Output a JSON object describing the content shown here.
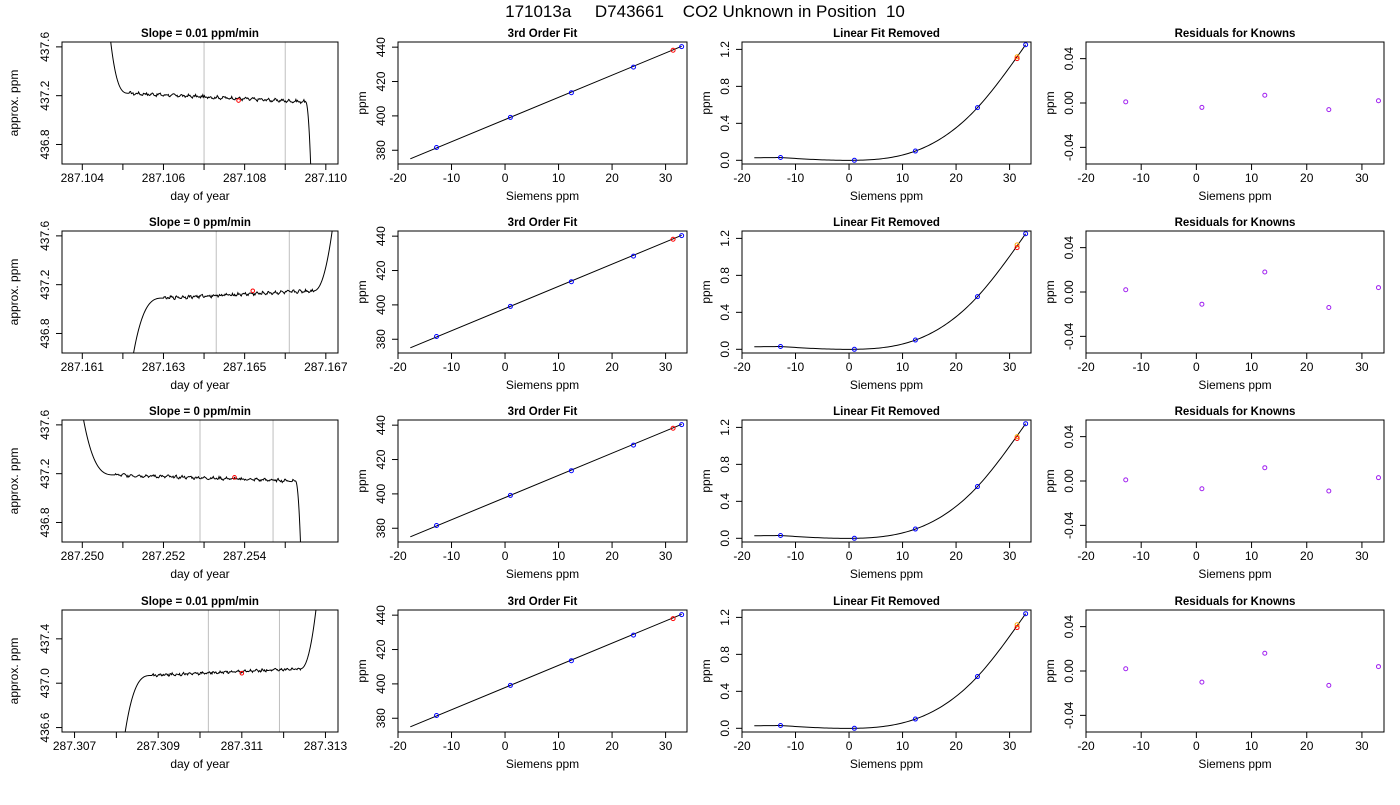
{
  "figure": {
    "title": "171013a     D743661    CO2 Unknown in Position  10"
  },
  "colors": {
    "trace": "#000000",
    "known_marker": "#0000ff",
    "unknown_marker": "#ff0000",
    "unknown_alt_marker": "#ffa500",
    "residual_marker": "#a020f0",
    "window_line": "#bebebe"
  },
  "chart_data": [
    {
      "type": "line",
      "row": 1,
      "panel": "timeseries",
      "title": "Slope =  0.01  ppm/min",
      "xlabel": "day of year",
      "ylabel": "approx. ppm",
      "xlim": [
        287.1035,
        287.1103
      ],
      "ylim": [
        436.64,
        437.64
      ],
      "xticks": [
        287.104,
        287.106,
        287.108,
        287.11
      ],
      "xtick_labels": [
        "287.104",
        "287.106",
        "287.108",
        "287.110"
      ],
      "yticks": [
        436.8,
        437.2,
        437.6
      ],
      "ytick_labels": [
        "436.8",
        "437.2",
        "437.6"
      ],
      "minor_xticks": [
        287.105,
        287.107,
        287.109
      ],
      "window": [
        287.107,
        287.109
      ],
      "start": [
        287.10465,
        437.8
      ],
      "rise_or_fall_end": [
        287.10515,
        437.22
      ],
      "plateau_end": [
        287.1095,
        437.15
      ],
      "end": [
        287.10965,
        436.4
      ],
      "mean_point": [
        287.10785,
        437.16
      ],
      "noise": 0.012
    },
    {
      "type": "scatter",
      "row": 1,
      "panel": "fit",
      "title": "3rd Order Fit",
      "xlabel": "Siemens ppm",
      "ylabel": "ppm",
      "xlim": [
        -20,
        34
      ],
      "ylim": [
        372,
        443
      ],
      "xticks": [
        -20,
        -10,
        0,
        10,
        20,
        30
      ],
      "xtick_labels": [
        "-20",
        "-10",
        "0",
        "10",
        "20",
        "30"
      ],
      "yticks": [
        380,
        400,
        420,
        440
      ],
      "ytick_labels": [
        "380",
        "400",
        "420",
        "440"
      ],
      "fit_line": [
        [
          -17.7,
          375.0
        ],
        [
          33.0,
          440.5
        ]
      ],
      "knowns": [
        [
          -12.8,
          381.6
        ],
        [
          1.0,
          399.1
        ],
        [
          12.4,
          413.5
        ],
        [
          24.0,
          428.4
        ],
        [
          33.0,
          440.3
        ]
      ],
      "unknowns": [
        [
          31.4,
          438.2
        ]
      ]
    },
    {
      "type": "scatter",
      "row": 1,
      "panel": "linear_removed",
      "title": "Linear Fit Removed",
      "xlabel": "Siemens ppm",
      "ylabel": "ppm",
      "xlim": [
        -20,
        34
      ],
      "ylim": [
        -0.04,
        1.28
      ],
      "xticks": [
        -20,
        -10,
        0,
        10,
        20,
        30
      ],
      "xtick_labels": [
        "-20",
        "-10",
        "0",
        "10",
        "20",
        "30"
      ],
      "yticks": [
        0.0,
        0.4,
        0.8,
        1.2
      ],
      "ytick_labels": [
        "0.0",
        "0.4",
        "0.8",
        "1.2"
      ],
      "curve_x": [
        -17.7,
        33.0
      ],
      "knowns": [
        [
          -12.8,
          0.03
        ],
        [
          1.0,
          0.0
        ],
        [
          12.4,
          0.1
        ],
        [
          24.0,
          0.57
        ],
        [
          33.0,
          1.25
        ]
      ],
      "unknowns": [
        [
          31.4,
          1.1
        ]
      ],
      "unknowns_alt": [
        [
          31.4,
          1.12
        ]
      ]
    },
    {
      "type": "scatter",
      "row": 1,
      "panel": "residuals",
      "title": "Residuals for Knowns",
      "xlabel": "Siemens ppm",
      "ylabel": "ppm",
      "xlim": [
        -20,
        34
      ],
      "ylim": [
        -0.055,
        0.055
      ],
      "xticks": [
        -20,
        -10,
        0,
        10,
        20,
        30
      ],
      "xtick_labels": [
        "-20",
        "-10",
        "0",
        "10",
        "20",
        "30"
      ],
      "yticks": [
        -0.04,
        0.0,
        0.04
      ],
      "ytick_labels": [
        "-0.04",
        "0.00",
        "0.04"
      ],
      "residuals": [
        [
          -12.8,
          0.001
        ],
        [
          1.0,
          -0.004
        ],
        [
          12.4,
          0.007
        ],
        [
          24.0,
          -0.006
        ],
        [
          33.0,
          0.002
        ]
      ]
    },
    {
      "type": "line",
      "row": 2,
      "panel": "timeseries",
      "title": "Slope =  0  ppm/min",
      "xlabel": "day of year",
      "ylabel": "approx. ppm",
      "xlim": [
        287.1605,
        287.1673
      ],
      "ylim": [
        436.64,
        437.64
      ],
      "xticks": [
        287.161,
        287.163,
        287.165,
        287.167
      ],
      "xtick_labels": [
        "287.161",
        "287.163",
        "287.165",
        "287.167"
      ],
      "yticks": [
        436.8,
        437.2,
        437.6
      ],
      "ytick_labels": [
        "436.8",
        "437.2",
        "437.6"
      ],
      "minor_xticks": [
        287.162,
        287.164,
        287.166
      ],
      "window": [
        287.1643,
        287.1661
      ],
      "start": [
        287.16215,
        436.4
      ],
      "rise_or_fall_end": [
        287.163,
        437.09
      ],
      "plateau_end": [
        287.1667,
        437.15
      ],
      "end": [
        287.1672,
        437.75
      ],
      "mean_point": [
        287.1652,
        437.15
      ],
      "noise": 0.012
    },
    {
      "type": "scatter",
      "row": 2,
      "panel": "fit",
      "title": "3rd Order Fit",
      "xlabel": "Siemens ppm",
      "ylabel": "ppm",
      "xlim": [
        -20,
        34
      ],
      "ylim": [
        372,
        443
      ],
      "xticks": [
        -20,
        -10,
        0,
        10,
        20,
        30
      ],
      "xtick_labels": [
        "-20",
        "-10",
        "0",
        "10",
        "20",
        "30"
      ],
      "yticks": [
        380,
        400,
        420,
        440
      ],
      "ytick_labels": [
        "380",
        "400",
        "420",
        "440"
      ],
      "fit_line": [
        [
          -17.7,
          375.0
        ],
        [
          33.0,
          440.5
        ]
      ],
      "knowns": [
        [
          -12.8,
          381.6
        ],
        [
          1.0,
          399.1
        ],
        [
          12.4,
          413.5
        ],
        [
          24.0,
          428.4
        ],
        [
          33.0,
          440.3
        ]
      ],
      "unknowns": [
        [
          31.4,
          438.2
        ]
      ]
    },
    {
      "type": "scatter",
      "row": 2,
      "panel": "linear_removed",
      "title": "Linear Fit Removed",
      "xlabel": "Siemens ppm",
      "ylabel": "ppm",
      "xlim": [
        -20,
        34
      ],
      "ylim": [
        -0.04,
        1.28
      ],
      "xticks": [
        -20,
        -10,
        0,
        10,
        20,
        30
      ],
      "xtick_labels": [
        "-20",
        "-10",
        "0",
        "10",
        "20",
        "30"
      ],
      "yticks": [
        0.0,
        0.4,
        0.8,
        1.2
      ],
      "ytick_labels": [
        "0.0",
        "0.4",
        "0.8",
        "1.2"
      ],
      "curve_x": [
        -17.7,
        33.0
      ],
      "knowns": [
        [
          -12.8,
          0.03
        ],
        [
          1.0,
          0.0
        ],
        [
          12.4,
          0.1
        ],
        [
          24.0,
          0.57
        ],
        [
          33.0,
          1.25
        ]
      ],
      "unknowns": [
        [
          31.4,
          1.1
        ]
      ],
      "unknowns_alt": [
        [
          31.4,
          1.13
        ]
      ]
    },
    {
      "type": "scatter",
      "row": 2,
      "panel": "residuals",
      "title": "Residuals for Knowns",
      "xlabel": "Siemens ppm",
      "ylabel": "ppm",
      "xlim": [
        -20,
        34
      ],
      "ylim": [
        -0.055,
        0.055
      ],
      "xticks": [
        -20,
        -10,
        0,
        10,
        20,
        30
      ],
      "xtick_labels": [
        "-20",
        "-10",
        "0",
        "10",
        "20",
        "30"
      ],
      "yticks": [
        -0.04,
        0.0,
        0.04
      ],
      "ytick_labels": [
        "-0.04",
        "0.00",
        "0.04"
      ],
      "residuals": [
        [
          -12.8,
          0.002
        ],
        [
          1.0,
          -0.011
        ],
        [
          12.4,
          0.018
        ],
        [
          24.0,
          -0.014
        ],
        [
          33.0,
          0.004
        ]
      ]
    },
    {
      "type": "line",
      "row": 3,
      "panel": "timeseries",
      "title": "Slope =  0  ppm/min",
      "xlabel": "day of year",
      "ylabel": "approx. ppm",
      "xlim": [
        287.2495,
        287.2563
      ],
      "ylim": [
        436.64,
        437.64
      ],
      "xticks": [
        287.25,
        287.252,
        287.254
      ],
      "xtick_labels": [
        "287.250",
        "287.252",
        "287.254"
      ],
      "yticks": [
        436.8,
        437.2,
        437.6
      ],
      "ytick_labels": [
        "436.8",
        "437.2",
        "437.6"
      ],
      "minor_xticks": [
        287.251,
        287.253,
        287.255
      ],
      "window": [
        287.2529,
        287.2547
      ],
      "start": [
        287.24995,
        437.8
      ],
      "rise_or_fall_end": [
        287.2508,
        437.19
      ],
      "plateau_end": [
        287.25525,
        437.14
      ],
      "end": [
        287.2554,
        436.4
      ],
      "mean_point": [
        287.25375,
        437.17
      ],
      "noise": 0.012
    },
    {
      "type": "scatter",
      "row": 3,
      "panel": "fit",
      "title": "3rd Order Fit",
      "xlabel": "Siemens ppm",
      "ylabel": "ppm",
      "xlim": [
        -20,
        34
      ],
      "ylim": [
        372,
        443
      ],
      "xticks": [
        -20,
        -10,
        0,
        10,
        20,
        30
      ],
      "xtick_labels": [
        "-20",
        "-10",
        "0",
        "10",
        "20",
        "30"
      ],
      "yticks": [
        380,
        400,
        420,
        440
      ],
      "ytick_labels": [
        "380",
        "400",
        "420",
        "440"
      ],
      "fit_line": [
        [
          -17.7,
          375.0
        ],
        [
          33.0,
          440.5
        ]
      ],
      "knowns": [
        [
          -12.8,
          381.6
        ],
        [
          1.0,
          399.1
        ],
        [
          12.4,
          413.5
        ],
        [
          24.0,
          428.4
        ],
        [
          33.0,
          440.3
        ]
      ],
      "unknowns": [
        [
          31.4,
          438.2
        ]
      ]
    },
    {
      "type": "scatter",
      "row": 3,
      "panel": "linear_removed",
      "title": "Linear Fit Removed",
      "xlabel": "Siemens ppm",
      "ylabel": "ppm",
      "xlim": [
        -20,
        34
      ],
      "ylim": [
        -0.04,
        1.28
      ],
      "xticks": [
        -20,
        -10,
        0,
        10,
        20,
        30
      ],
      "xtick_labels": [
        "-20",
        "-10",
        "0",
        "10",
        "20",
        "30"
      ],
      "yticks": [
        0.0,
        0.4,
        0.8,
        1.2
      ],
      "ytick_labels": [
        "0.0",
        "0.4",
        "0.8",
        "1.2"
      ],
      "curve_x": [
        -17.7,
        33.0
      ],
      "knowns": [
        [
          -12.8,
          0.03
        ],
        [
          1.0,
          0.0
        ],
        [
          12.4,
          0.1
        ],
        [
          24.0,
          0.56
        ],
        [
          33.0,
          1.24
        ]
      ],
      "unknowns": [
        [
          31.4,
          1.08
        ]
      ],
      "unknowns_alt": [
        [
          31.4,
          1.1
        ]
      ]
    },
    {
      "type": "scatter",
      "row": 3,
      "panel": "residuals",
      "title": "Residuals for Knowns",
      "xlabel": "Siemens ppm",
      "ylabel": "ppm",
      "xlim": [
        -20,
        34
      ],
      "ylim": [
        -0.055,
        0.055
      ],
      "xticks": [
        -20,
        -10,
        0,
        10,
        20,
        30
      ],
      "xtick_labels": [
        "-20",
        "-10",
        "0",
        "10",
        "20",
        "30"
      ],
      "yticks": [
        -0.04,
        0.0,
        0.04
      ],
      "ytick_labels": [
        "-0.04",
        "0.00",
        "0.04"
      ],
      "residuals": [
        [
          -12.8,
          0.001
        ],
        [
          1.0,
          -0.007
        ],
        [
          12.4,
          0.012
        ],
        [
          24.0,
          -0.009
        ],
        [
          33.0,
          0.003
        ]
      ]
    },
    {
      "type": "line",
      "row": 4,
      "panel": "timeseries",
      "title": "Slope =  0.01  ppm/min",
      "xlabel": "day of year",
      "ylabel": "approx. ppm",
      "xlim": [
        287.3067,
        287.3133
      ],
      "ylim": [
        436.56,
        437.66
      ],
      "xticks": [
        287.307,
        287.309,
        287.311,
        287.313
      ],
      "xtick_labels": [
        "287.307",
        "287.309",
        "287.311",
        "287.313"
      ],
      "yticks": [
        436.6,
        437.0,
        437.4
      ],
      "ytick_labels": [
        "436.6",
        "437.0",
        "437.4"
      ],
      "minor_xticks": [
        287.308,
        287.31,
        287.312
      ],
      "window": [
        287.3102,
        287.3119
      ],
      "start": [
        287.30815,
        436.4
      ],
      "rise_or_fall_end": [
        287.30885,
        437.07
      ],
      "plateau_end": [
        287.3124,
        437.13
      ],
      "end": [
        287.3128,
        437.75
      ],
      "mean_point": [
        287.311,
        437.09
      ],
      "noise": 0.012
    },
    {
      "type": "scatter",
      "row": 4,
      "panel": "fit",
      "title": "3rd Order Fit",
      "xlabel": "Siemens ppm",
      "ylabel": "ppm",
      "xlim": [
        -20,
        34
      ],
      "ylim": [
        372,
        443
      ],
      "xticks": [
        -20,
        -10,
        0,
        10,
        20,
        30
      ],
      "xtick_labels": [
        "-20",
        "-10",
        "0",
        "10",
        "20",
        "30"
      ],
      "yticks": [
        380,
        400,
        420,
        440
      ],
      "ytick_labels": [
        "380",
        "400",
        "420",
        "440"
      ],
      "fit_line": [
        [
          -17.7,
          375.0
        ],
        [
          33.0,
          440.5
        ]
      ],
      "knowns": [
        [
          -12.8,
          381.6
        ],
        [
          1.0,
          399.1
        ],
        [
          12.4,
          413.5
        ],
        [
          24.0,
          428.4
        ],
        [
          33.0,
          440.3
        ]
      ],
      "unknowns": [
        [
          31.4,
          438.0
        ]
      ]
    },
    {
      "type": "scatter",
      "row": 4,
      "panel": "linear_removed",
      "title": "Linear Fit Removed",
      "xlabel": "Siemens ppm",
      "ylabel": "ppm",
      "xlim": [
        -20,
        34
      ],
      "ylim": [
        -0.04,
        1.28
      ],
      "xticks": [
        -20,
        -10,
        0,
        10,
        20,
        30
      ],
      "xtick_labels": [
        "-20",
        "-10",
        "0",
        "10",
        "20",
        "30"
      ],
      "yticks": [
        0.0,
        0.4,
        0.8,
        1.2
      ],
      "ytick_labels": [
        "0.0",
        "0.4",
        "0.8",
        "1.2"
      ],
      "curve_x": [
        -17.7,
        33.0
      ],
      "knowns": [
        [
          -12.8,
          0.03
        ],
        [
          1.0,
          0.0
        ],
        [
          12.4,
          0.1
        ],
        [
          24.0,
          0.56
        ],
        [
          33.0,
          1.24
        ]
      ],
      "unknowns": [
        [
          31.4,
          1.09
        ]
      ],
      "unknowns_alt": [
        [
          31.4,
          1.12
        ]
      ]
    },
    {
      "type": "scatter",
      "row": 4,
      "panel": "residuals",
      "title": "Residuals for Knowns",
      "xlabel": "Siemens ppm",
      "ylabel": "ppm",
      "xlim": [
        -20,
        34
      ],
      "ylim": [
        -0.055,
        0.055
      ],
      "xticks": [
        -20,
        -10,
        0,
        10,
        20,
        30
      ],
      "xtick_labels": [
        "-20",
        "-10",
        "0",
        "10",
        "20",
        "30"
      ],
      "yticks": [
        -0.04,
        0.0,
        0.04
      ],
      "ytick_labels": [
        "-0.04",
        "0.00",
        "0.04"
      ],
      "residuals": [
        [
          -12.8,
          0.002
        ],
        [
          1.0,
          -0.01
        ],
        [
          12.4,
          0.016
        ],
        [
          24.0,
          -0.013
        ],
        [
          33.0,
          0.004
        ]
      ]
    }
  ]
}
